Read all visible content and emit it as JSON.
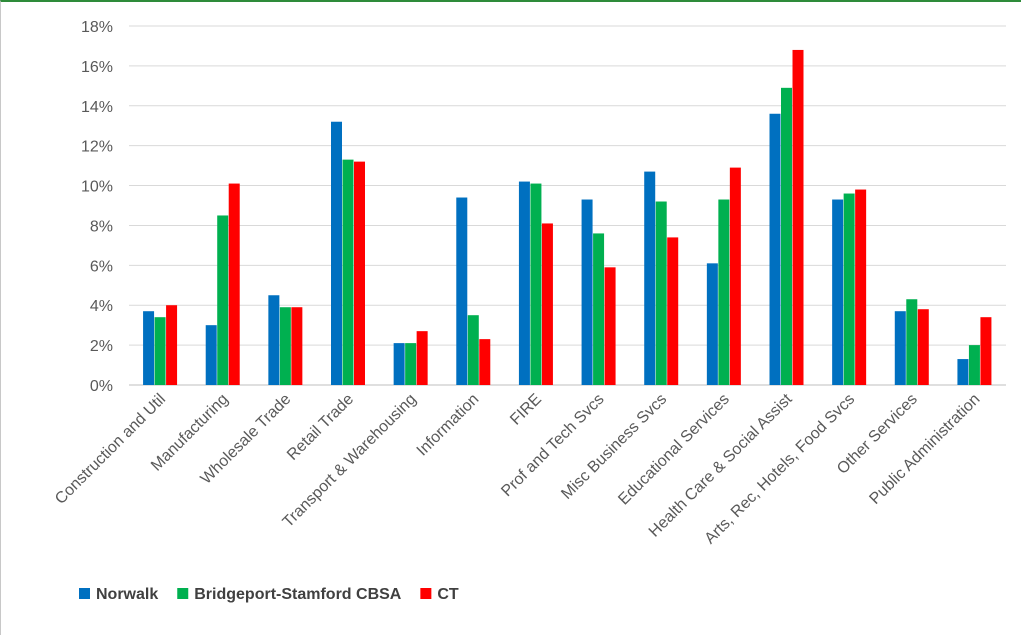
{
  "chart_data": {
    "type": "bar",
    "title": "",
    "xlabel": "",
    "ylabel": "",
    "ylim": [
      0,
      18
    ],
    "y_ticks": [
      "0%",
      "2%",
      "4%",
      "6%",
      "8%",
      "10%",
      "12%",
      "14%",
      "16%",
      "18%"
    ],
    "y_tick_values": [
      0,
      2,
      4,
      6,
      8,
      10,
      12,
      14,
      16,
      18
    ],
    "grid": true,
    "legend_position": "bottom-left",
    "categories": [
      "Construction and Util",
      "Manufacturing",
      "Wholesale Trade",
      "Retail Trade",
      "Transport & Warehousing",
      "Information",
      "FIRE",
      "Prof and Tech Svcs",
      "Misc Business Svcs",
      "Educational Services",
      "Health Care & Social Assist",
      "Arts, Rec, Hotels, Food Svcs",
      "Other Services",
      "Public Administration"
    ],
    "series": [
      {
        "name": "Norwalk",
        "color": "#0070c0",
        "values": [
          3.7,
          3.0,
          4.5,
          13.2,
          2.1,
          9.4,
          10.2,
          9.3,
          10.7,
          6.1,
          13.6,
          9.3,
          3.7,
          1.3
        ]
      },
      {
        "name": "Bridgeport-Stamford CBSA",
        "color": "#00b050",
        "values": [
          3.4,
          8.5,
          3.9,
          11.3,
          2.1,
          3.5,
          10.1,
          7.6,
          9.2,
          9.3,
          14.9,
          9.6,
          4.3,
          2.0
        ]
      },
      {
        "name": "CT",
        "color": "#ff0000",
        "values": [
          4.0,
          10.1,
          3.9,
          11.2,
          2.7,
          2.3,
          8.1,
          5.9,
          7.4,
          10.9,
          16.8,
          9.8,
          3.8,
          3.4
        ]
      }
    ]
  }
}
